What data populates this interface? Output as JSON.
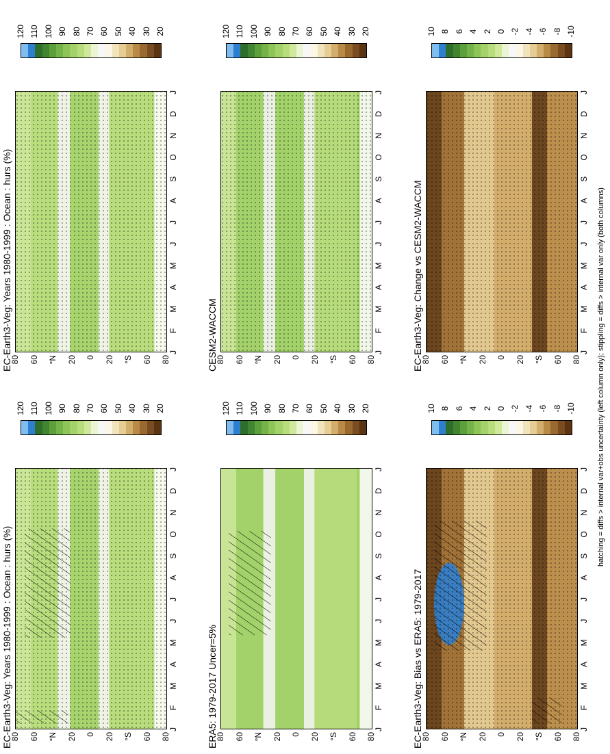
{
  "colors": {
    "ramp": [
      "#5b3412",
      "#7a4c22",
      "#99692f",
      "#b98a46",
      "#d2ad6b",
      "#e5cd94",
      "#f1e3bb",
      "#fbf6e6",
      "#f7f7f7",
      "#ebf5d4",
      "#cfe89c",
      "#b8dd7d",
      "#a3d26a",
      "#8dc559",
      "#74b349",
      "#5c9f3b",
      "#418431",
      "#2f6d2a",
      "#2f7fd0",
      "#7fbdf0"
    ],
    "anomaly_ramp": [
      "#5b3412",
      "#7a4c22",
      "#99692f",
      "#b98a46",
      "#d2ad6b",
      "#e5cd94",
      "#f1e3bb",
      "#fbf6e6",
      "#f7f7f7",
      "#ebf5d4",
      "#cfe89c",
      "#b8dd7d",
      "#a3d26a",
      "#8dc559",
      "#74b349",
      "#5c9f3b",
      "#418431",
      "#2f6d2a",
      "#2f7fd0",
      "#7fbdf0"
    ]
  },
  "footnote": "hatching = diffs > internal var+obs uncertainty (left column only); stippling = diffs > internal var only (both columns)",
  "chart_data": [
    {
      "type": "heatmap",
      "title": "EC-Earth3-Veg: Years 1980-1999 : Ocean : hurs (%)",
      "x_tick_labels": [
        "J",
        "F",
        "M",
        "A",
        "M",
        "J",
        "J",
        "A",
        "S",
        "O",
        "N",
        "D",
        "J"
      ],
      "y_tick_labels": [
        "80",
        "60",
        "°N",
        "20",
        "0",
        "20",
        "°S",
        "60",
        "80"
      ],
      "colorbar_labels": [
        "20",
        "30",
        "40",
        "50",
        "60",
        "70",
        "80",
        "90",
        "100",
        "110",
        "120"
      ],
      "hatching": true,
      "stippling": true
    },
    {
      "type": "heatmap",
      "title": "EC-Earth3-Veg: Years 1980-1999 : Ocean : hurs (%)",
      "x_tick_labels": [
        "J",
        "F",
        "M",
        "A",
        "M",
        "J",
        "J",
        "A",
        "S",
        "O",
        "N",
        "D",
        "J"
      ],
      "y_tick_labels": [
        "80",
        "60",
        "°N",
        "20",
        "0",
        "20",
        "°S",
        "60",
        "80"
      ],
      "colorbar_labels": [
        "20",
        "30",
        "40",
        "50",
        "60",
        "70",
        "80",
        "90",
        "100",
        "110",
        "120"
      ],
      "hatching": false,
      "stippling": true
    },
    {
      "type": "heatmap",
      "title": "ERA5: 1979-2017 Uncer=5%",
      "x_tick_labels": [
        "J",
        "F",
        "M",
        "A",
        "M",
        "J",
        "J",
        "A",
        "S",
        "O",
        "N",
        "D",
        "J"
      ],
      "y_tick_labels": [
        "80",
        "60",
        "°N",
        "20",
        "0",
        "20",
        "°S",
        "60",
        "80"
      ],
      "colorbar_labels": [
        "20",
        "30",
        "40",
        "50",
        "60",
        "70",
        "80",
        "90",
        "100",
        "110",
        "120"
      ],
      "hatching": true,
      "stippling": false
    },
    {
      "type": "heatmap",
      "title": "CESM2-WACCM",
      "x_tick_labels": [
        "J",
        "F",
        "M",
        "A",
        "M",
        "J",
        "J",
        "A",
        "S",
        "O",
        "N",
        "D",
        "J"
      ],
      "y_tick_labels": [
        "80",
        "60",
        "°N",
        "20",
        "0",
        "20",
        "°S",
        "60",
        "80"
      ],
      "colorbar_labels": [
        "20",
        "30",
        "40",
        "50",
        "60",
        "70",
        "80",
        "90",
        "100",
        "110",
        "120"
      ],
      "hatching": false,
      "stippling": true
    },
    {
      "type": "heatmap",
      "title": "EC-Earth3-Veg: Bias vs ERA5: 1979-2017",
      "x_tick_labels": [
        "J",
        "F",
        "M",
        "A",
        "M",
        "J",
        "J",
        "A",
        "S",
        "O",
        "N",
        "D",
        "J"
      ],
      "y_tick_labels": [
        "80",
        "60",
        "°N",
        "20",
        "0",
        "20",
        "°S",
        "60",
        "80"
      ],
      "colorbar_labels": [
        "-10",
        "-8",
        "-6",
        "-4",
        "-2",
        "0",
        "2",
        "4",
        "6",
        "8",
        "10"
      ],
      "hatching": true,
      "stippling": true
    },
    {
      "type": "heatmap",
      "title": "EC-Earth3-Veg: Change vs CESM2-WACCM",
      "x_tick_labels": [
        "J",
        "F",
        "M",
        "A",
        "M",
        "J",
        "J",
        "A",
        "S",
        "O",
        "N",
        "D",
        "J"
      ],
      "y_tick_labels": [
        "80",
        "60",
        "°N",
        "20",
        "0",
        "20",
        "°S",
        "60",
        "80"
      ],
      "colorbar_labels": [
        "-10",
        "-8",
        "-6",
        "-4",
        "-2",
        "0",
        "2",
        "4",
        "6",
        "8",
        "10"
      ],
      "hatching": false,
      "stippling": true
    }
  ]
}
